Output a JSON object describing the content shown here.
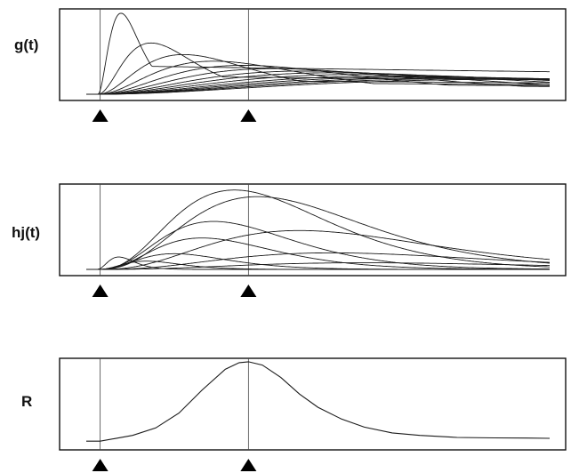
{
  "chart_data": [
    {
      "type": "line",
      "panel": "g",
      "ylabel": "g(t)",
      "xlim": [
        0,
        100
      ],
      "ylim": [
        0,
        1
      ],
      "reference_lines": [
        3,
        35
      ],
      "markers": [
        3,
        35
      ],
      "grid": false,
      "series": [
        {
          "peak_x": 7.5,
          "peak_y": 0.98
        },
        {
          "peak_x": 14,
          "peak_y": 0.62
        },
        {
          "peak_x": 21,
          "peak_y": 0.48
        },
        {
          "peak_x": 27.5,
          "peak_y": 0.4
        },
        {
          "peak_x": 34,
          "peak_y": 0.35
        },
        {
          "peak_x": 40.5,
          "peak_y": 0.31
        },
        {
          "peak_x": 47,
          "peak_y": 0.28
        },
        {
          "peak_x": 53.5,
          "peak_y": 0.26
        },
        {
          "peak_x": 60,
          "peak_y": 0.24
        },
        {
          "peak_x": 66.5,
          "peak_y": 0.22
        },
        {
          "peak_x": 73,
          "peak_y": 0.21
        },
        {
          "peak_x": 79.5,
          "peak_y": 0.2
        },
        {
          "peak_x": 86,
          "peak_y": 0.19
        },
        {
          "peak_x": 92.5,
          "peak_y": 0.18
        }
      ]
    },
    {
      "type": "line",
      "panel": "h",
      "ylabel": "hj(t)",
      "xlim": [
        0,
        100
      ],
      "ylim": [
        0,
        1
      ],
      "reference_lines": [
        3,
        35
      ],
      "markers": [
        3,
        35
      ],
      "grid": false,
      "series": [
        {
          "peak_x": 7,
          "peak_y": 0.15
        },
        {
          "peak_x": 13,
          "peak_y": 0.1
        },
        {
          "peak_x": 19,
          "peak_y": 0.19
        },
        {
          "peak_x": 25,
          "peak_y": 0.38
        },
        {
          "peak_x": 27.5,
          "peak_y": 0.58
        },
        {
          "peak_x": 32,
          "peak_y": 0.96
        },
        {
          "peak_x": 37,
          "peak_y": 0.88
        },
        {
          "peak_x": 46,
          "peak_y": 0.47
        },
        {
          "peak_x": 53,
          "peak_y": 0.2
        },
        {
          "peak_x": 60,
          "peak_y": 0.08
        }
      ]
    },
    {
      "type": "line",
      "panel": "R",
      "ylabel": "R",
      "xlim": [
        0,
        100
      ],
      "ylim": [
        0,
        1
      ],
      "reference_lines": [
        3,
        35
      ],
      "markers": [
        3,
        35
      ],
      "grid": false,
      "series": [
        {
          "x": [
            0,
            3,
            6,
            10,
            15,
            20,
            25,
            30,
            33,
            35,
            38,
            42,
            46,
            50,
            55,
            60,
            66,
            72,
            80,
            88,
            95,
            100
          ],
          "y": [
            0.03,
            0.03,
            0.06,
            0.1,
            0.19,
            0.37,
            0.65,
            0.9,
            0.98,
            0.99,
            0.95,
            0.8,
            0.6,
            0.44,
            0.3,
            0.2,
            0.13,
            0.1,
            0.075,
            0.07,
            0.068,
            0.065
          ]
        }
      ]
    }
  ]
}
